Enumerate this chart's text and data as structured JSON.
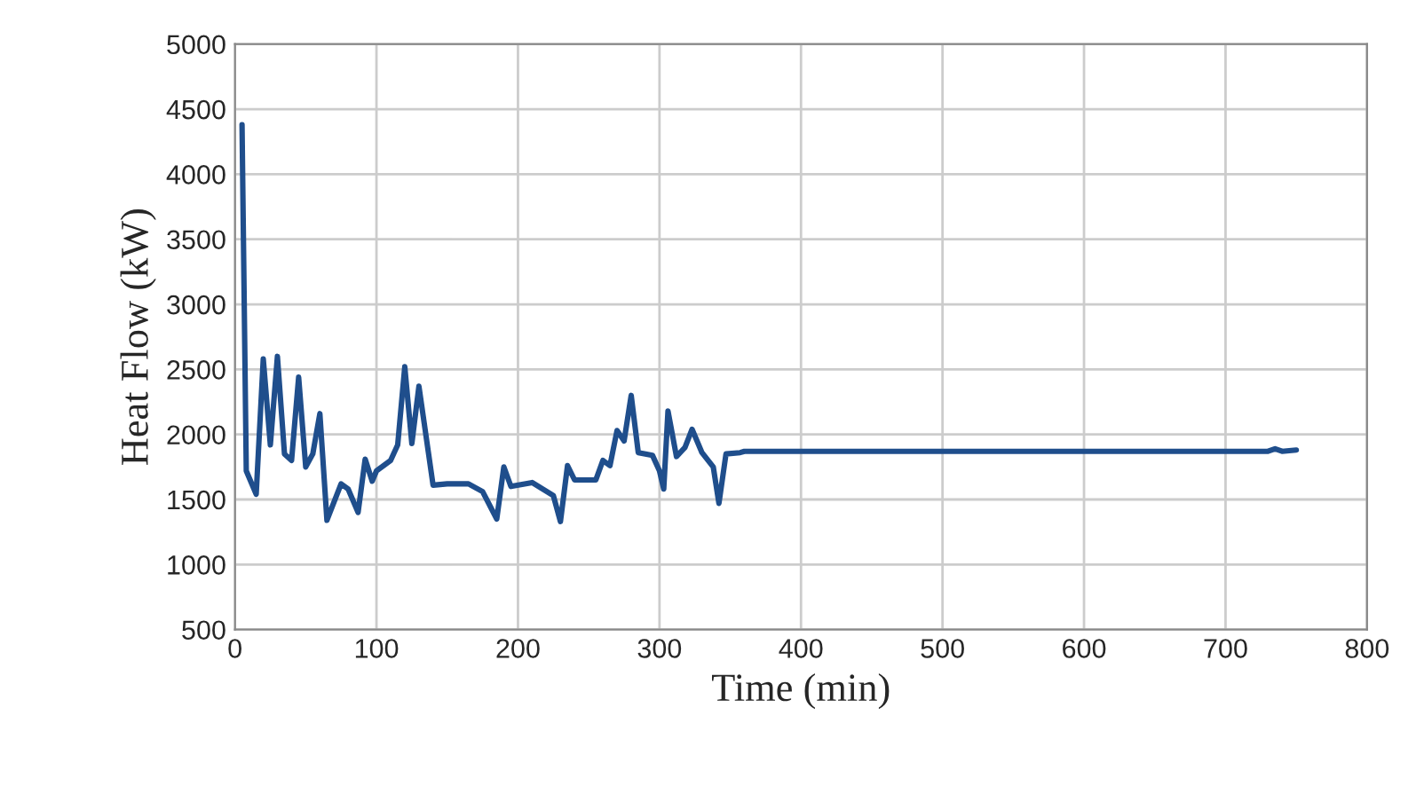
{
  "chart_data": {
    "type": "line",
    "xlabel": "Time (min)",
    "ylabel": "Heat Flow (kW)",
    "series": [
      {
        "color": "#1f4e8c",
        "x": [
          5,
          8,
          15,
          20,
          25,
          30,
          35,
          40,
          45,
          50,
          55,
          60,
          65,
          75,
          80,
          87,
          92,
          97,
          100,
          110,
          115,
          120,
          125,
          130,
          140,
          150,
          165,
          175,
          185,
          190,
          195,
          210,
          225,
          230,
          235,
          240,
          255,
          260,
          265,
          270,
          275,
          280,
          285,
          295,
          300,
          303,
          306,
          312,
          318,
          323,
          330,
          338,
          342,
          347,
          357,
          360,
          730,
          735,
          740,
          750
        ],
        "values": [
          4380,
          1720,
          1540,
          2580,
          1920,
          2600,
          1850,
          1800,
          2440,
          1750,
          1850,
          2160,
          1340,
          1620,
          1580,
          1400,
          1810,
          1640,
          1720,
          1800,
          1920,
          2520,
          1930,
          2370,
          1610,
          1620,
          1620,
          1560,
          1350,
          1750,
          1600,
          1630,
          1530,
          1330,
          1760,
          1650,
          1650,
          1800,
          1760,
          2030,
          1950,
          2300,
          1860,
          1840,
          1720,
          1580,
          2180,
          1830,
          1900,
          2040,
          1860,
          1750,
          1470,
          1850,
          1860,
          1870,
          1870,
          1890,
          1870,
          1880
        ]
      }
    ],
    "xlim": [
      0,
      800
    ],
    "xticks": [
      0,
      100,
      200,
      300,
      400,
      500,
      600,
      700,
      800
    ],
    "ylim": [
      500,
      5000
    ],
    "yticks": [
      500,
      1000,
      1500,
      2000,
      2500,
      3000,
      3500,
      4000,
      4500,
      5000
    ],
    "grid": true,
    "legend": false
  }
}
